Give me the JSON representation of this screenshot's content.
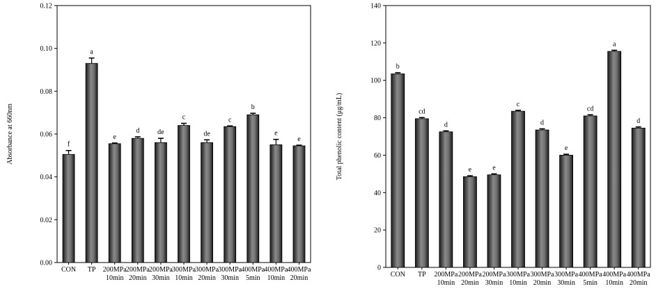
{
  "chart_data": [
    {
      "type": "bar",
      "title": "",
      "xlabel": "",
      "ylabel": "Absorbance at 660nm",
      "ylim": [
        0,
        0.12
      ],
      "yticks": [
        "0.00",
        "0.02",
        "0.04",
        "0.06",
        "0.08",
        "0.10",
        "0.12"
      ],
      "grid": false,
      "legend": "none",
      "bar_color": "#5a5a5a",
      "categories": [
        [
          "CON"
        ],
        [
          "TP"
        ],
        [
          "200MPa",
          "10min"
        ],
        [
          "200MPa",
          "20min"
        ],
        [
          "200MPa",
          "30min"
        ],
        [
          "300MPa",
          "10min"
        ],
        [
          "300MPa",
          "20min"
        ],
        [
          "300MPa",
          "30min"
        ],
        [
          "400MPa",
          "5min"
        ],
        [
          "400MPa",
          "10min"
        ],
        [
          "400MPa",
          "20min"
        ]
      ],
      "values": [
        0.0505,
        0.093,
        0.0555,
        0.058,
        0.056,
        0.064,
        0.056,
        0.0635,
        0.069,
        0.055,
        0.0545
      ],
      "errors": [
        0.0018,
        0.0025,
        0.0003,
        0.0007,
        0.002,
        0.001,
        0.0013,
        0.0003,
        0.0007,
        0.0025,
        0.0003
      ],
      "significance": [
        "f",
        "a",
        "e",
        "d",
        "de",
        "c",
        "de",
        "c",
        "b",
        "e",
        "e"
      ]
    },
    {
      "type": "bar",
      "title": "",
      "xlabel": "",
      "ylabel": "Total phenolic content (μg/mL)",
      "ylim": [
        0,
        140
      ],
      "yticks": [
        "0",
        "20",
        "40",
        "60",
        "80",
        "100",
        "120",
        "140"
      ],
      "grid": false,
      "legend": "none",
      "bar_color": "#5a5a5a",
      "categories": [
        [
          "CON"
        ],
        [
          "TP"
        ],
        [
          "200MPa",
          "10min"
        ],
        [
          "200MPa",
          "20min"
        ],
        [
          "200MPa",
          "30min"
        ],
        [
          "300MPa",
          "10min"
        ],
        [
          "300MPa",
          "20min"
        ],
        [
          "300MPa",
          "30min"
        ],
        [
          "400MPa",
          "5min"
        ],
        [
          "400MPa",
          "10min"
        ],
        [
          "400MPa",
          "20min"
        ]
      ],
      "values": [
        103.5,
        79.5,
        72.5,
        48.5,
        49.5,
        83.5,
        73.5,
        60.0,
        81.0,
        115.5,
        74.5
      ],
      "errors": [
        0.6,
        0.6,
        0.5,
        0.5,
        0.5,
        0.5,
        0.6,
        0.5,
        0.6,
        0.6,
        0.6
      ],
      "significance": [
        "b",
        "cd",
        "d",
        "e",
        "e",
        "c",
        "d",
        "e",
        "cd",
        "a",
        "d"
      ]
    }
  ]
}
